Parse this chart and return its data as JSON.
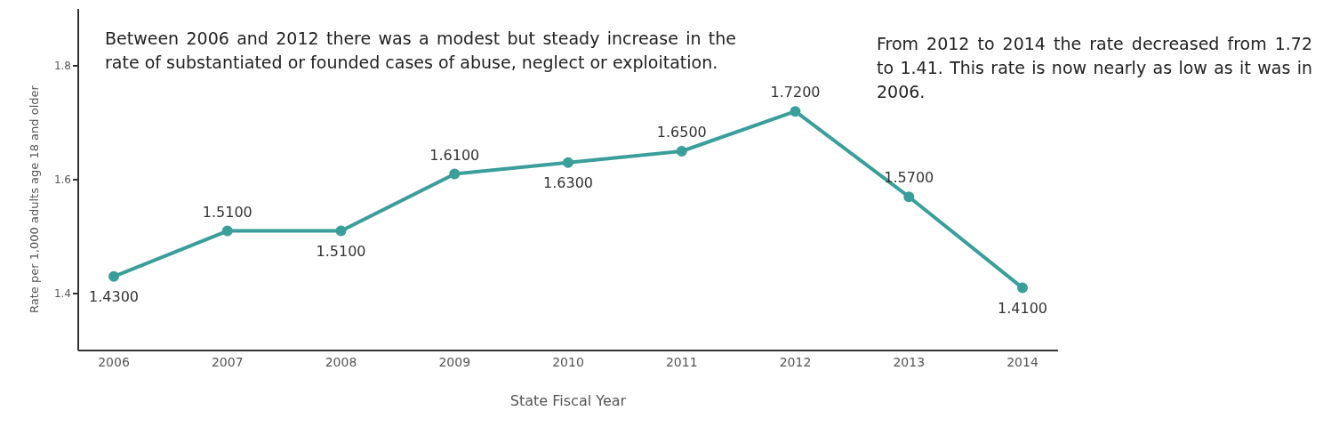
{
  "chart_data": {
    "type": "line",
    "xlabel": "State Fiscal Year",
    "ylabel": "Rate per 1,000 adults age 18 and older",
    "categories": [
      "2006",
      "2007",
      "2008",
      "2009",
      "2010",
      "2011",
      "2012",
      "2013",
      "2014"
    ],
    "series": [
      {
        "color": "#3a9e9a",
        "values": [
          1.43,
          1.51,
          1.51,
          1.61,
          1.63,
          1.65,
          1.72,
          1.57,
          1.41
        ],
        "value_labels": [
          "1.4300",
          "1.5100",
          "1.5100",
          "1.6100",
          "1.6300",
          "1.6500",
          "1.7200",
          "1.5700",
          "1.4100"
        ]
      }
    ],
    "ylim": [
      1.3,
      1.9
    ],
    "yticks": [
      1.4,
      1.6,
      1.8
    ],
    "grid": false,
    "legend": false,
    "marker": "circle",
    "line_style": "solid",
    "annotations": [
      "Between 2006 and 2012 there was a modest but steady increase in the rate of substantiated or founded cases of abuse, neglect or exploitation.",
      "From 2012 to 2014 the rate decreased from 1.72 to 1.41. This rate is now nearly as low as it was in 2006."
    ]
  }
}
